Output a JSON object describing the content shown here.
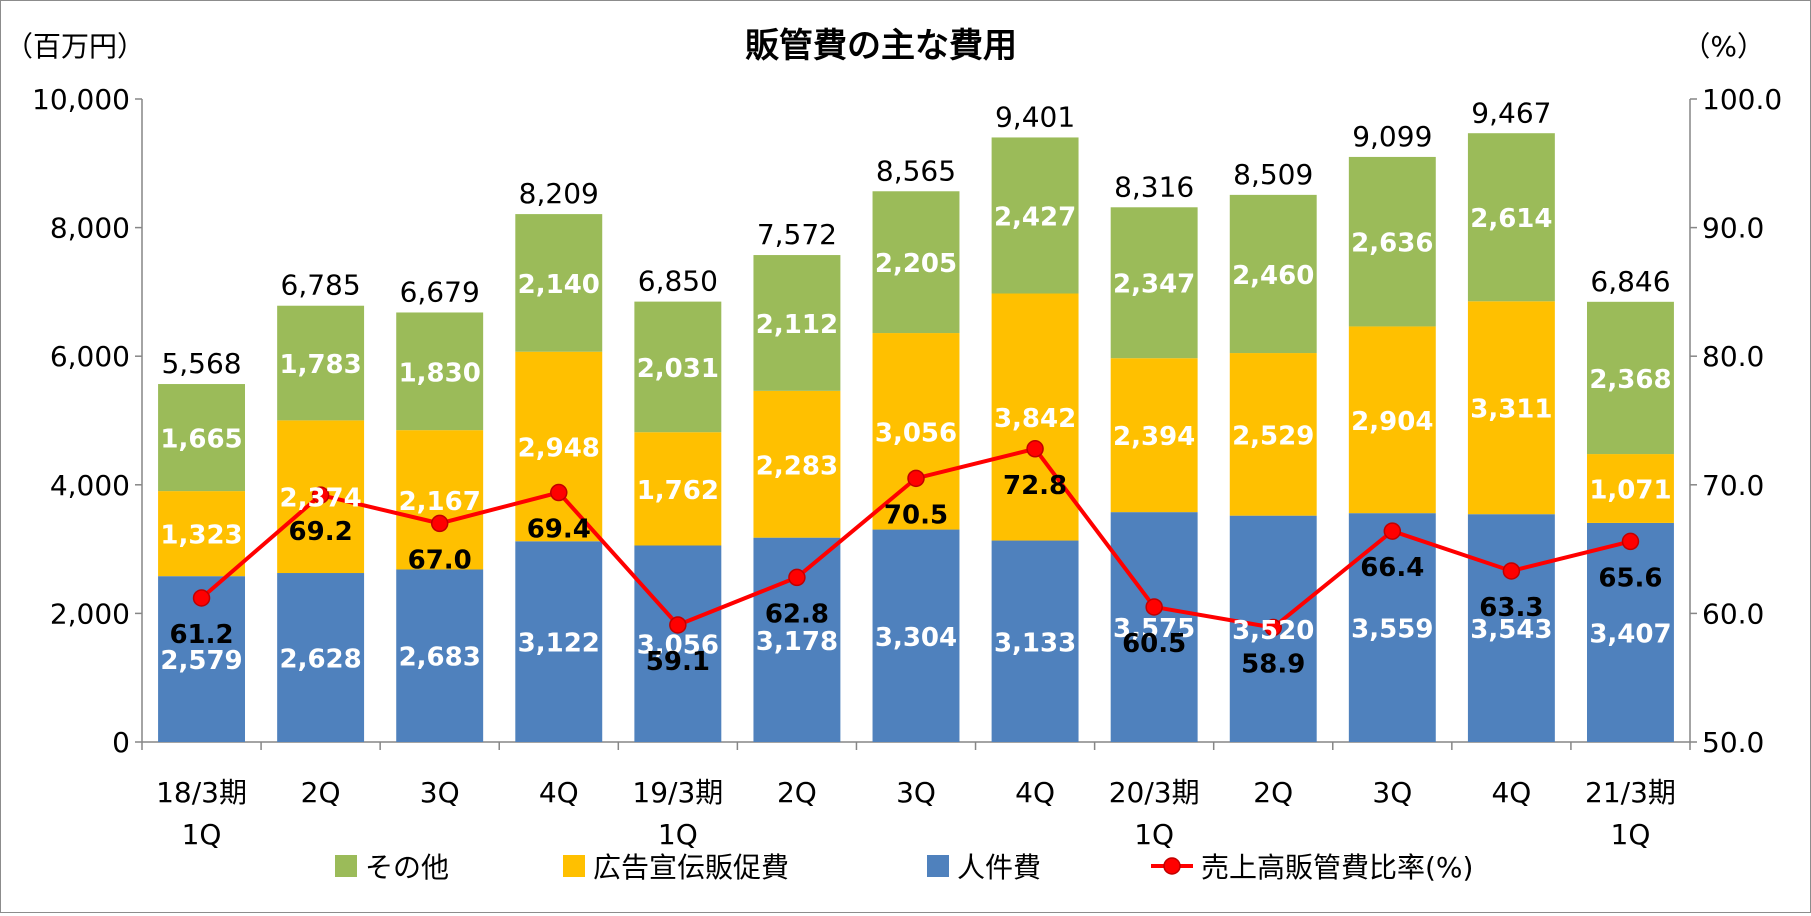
{
  "chart_data": {
    "type": "bar",
    "title": "販管費の主な費用",
    "y_left_unit": "（百万円）",
    "y_right_unit": "（%）",
    "y_left_ticks": [
      "0",
      "2,000",
      "4,000",
      "6,000",
      "8,000",
      "10,000"
    ],
    "y_right_ticks": [
      "50.0",
      "60.0",
      "70.0",
      "80.0",
      "90.0",
      "100.0"
    ],
    "ylim_left": [
      0,
      10000
    ],
    "ylim_right": [
      50,
      100
    ],
    "categories": [
      [
        "18/3期",
        "1Q"
      ],
      [
        "2Q"
      ],
      [
        "3Q"
      ],
      [
        "4Q"
      ],
      [
        "19/3期",
        "1Q"
      ],
      [
        "2Q"
      ],
      [
        "3Q"
      ],
      [
        "4Q"
      ],
      [
        "20/3期",
        "1Q"
      ],
      [
        "2Q"
      ],
      [
        "3Q"
      ],
      [
        "4Q"
      ],
      [
        "21/3期",
        "1Q"
      ]
    ],
    "series": [
      {
        "name": "人件費",
        "color": "#4f81bd",
        "values": [
          2579,
          2628,
          2683,
          3122,
          3056,
          3178,
          3304,
          3133,
          3575,
          3520,
          3559,
          3543,
          3407
        ],
        "labels": [
          "2,579",
          "2,628",
          "2,683",
          "3,122",
          "3,056",
          "3,178",
          "3,304",
          "3,133",
          "3,575",
          "3,520",
          "3,559",
          "3,543",
          "3,407"
        ]
      },
      {
        "name": "広告宣伝販促費",
        "color": "#ffc000",
        "values": [
          1323,
          2374,
          2167,
          2948,
          1762,
          2283,
          3056,
          3842,
          2394,
          2529,
          2904,
          3311,
          1071
        ],
        "labels": [
          "1,323",
          "2,374",
          "2,167",
          "2,948",
          "1,762",
          "2,283",
          "3,056",
          "3,842",
          "2,394",
          "2,529",
          "2,904",
          "3,311",
          "1,071"
        ]
      },
      {
        "name": "その他",
        "color": "#9bbb59",
        "values": [
          1665,
          1783,
          1830,
          2140,
          2031,
          2112,
          2205,
          2427,
          2347,
          2460,
          2636,
          2614,
          2368
        ],
        "labels": [
          "1,665",
          "1,783",
          "1,830",
          "2,140",
          "2,031",
          "2,112",
          "2,205",
          "2,427",
          "2,347",
          "2,460",
          "2,636",
          "2,614",
          "2,368"
        ]
      }
    ],
    "totals": [
      5568,
      6785,
      6679,
      8209,
      6850,
      7572,
      8565,
      9401,
      8316,
      8509,
      9099,
      9467,
      6846
    ],
    "total_labels": [
      "5,568",
      "6,785",
      "6,679",
      "8,209",
      "6,850",
      "7,572",
      "8,565",
      "9,401",
      "8,316",
      "8,509",
      "9,099",
      "9,467",
      "6,846"
    ],
    "line": {
      "name": "売上高販管費比率(%)",
      "color": "#ff0000",
      "values": [
        61.2,
        69.2,
        67.0,
        69.4,
        59.1,
        62.8,
        70.5,
        72.8,
        60.5,
        58.9,
        66.4,
        63.3,
        65.6
      ],
      "labels": [
        "61.2",
        "69.2",
        "67.0",
        "69.4",
        "59.1",
        "62.8",
        "70.5",
        "72.8",
        "60.5",
        "58.9",
        "66.4",
        "63.3",
        "65.6"
      ]
    },
    "legend_order": [
      "その他",
      "広告宣伝販促費",
      "人件費",
      "売上高販管費比率(%)"
    ],
    "legend_position": "bottom"
  }
}
